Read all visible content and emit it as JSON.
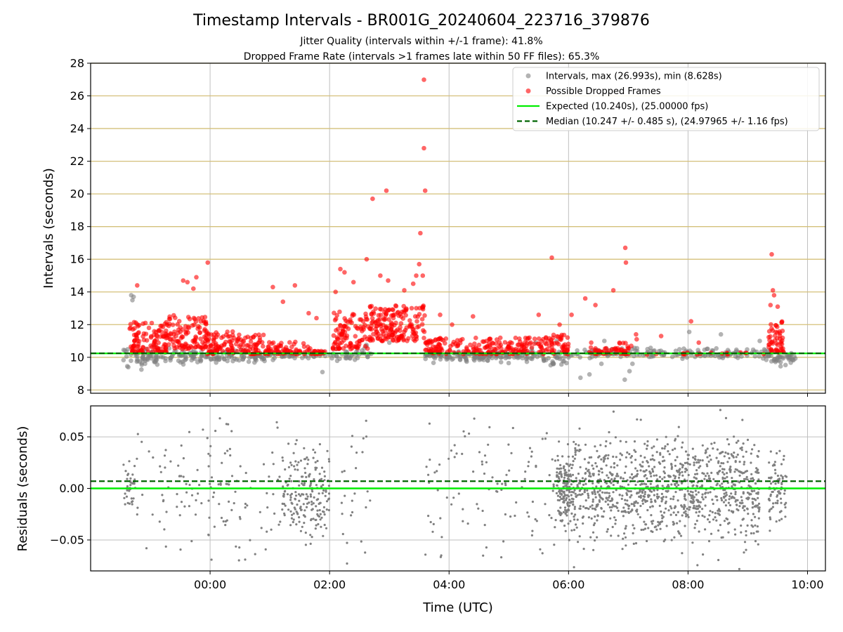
{
  "chart_data": {
    "type": "scatter",
    "title": "Timestamp Intervals - BR001G_20240604_223716_379876",
    "subtitles": [
      "Jitter Quality (intervals within +/-1 frame): 41.8%",
      "Dropped Frame Rate (intervals >1 frames late within 50 FF files): 65.3%"
    ],
    "xlabel": "Time (UTC)",
    "x_tick_labels": [
      "00:00",
      "02:00",
      "04:00",
      "06:00",
      "08:00",
      "10:00"
    ],
    "x_tick_hours": [
      24,
      26,
      28,
      30,
      32,
      34
    ],
    "xlim_hours": [
      22.0,
      34.3
    ],
    "colors": {
      "intervals": "#808080",
      "dropped": "#ff0000",
      "expected": "#00ee00",
      "median": "#006400",
      "grid": "#bfbfbf",
      "frame_lines": "#d4c07a"
    },
    "top": {
      "ylabel": "Intervals (seconds)",
      "ylim": [
        7.8,
        28
      ],
      "y_ticks": [
        8,
        10,
        12,
        14,
        16,
        18,
        20,
        22,
        24,
        26,
        28
      ],
      "frame_lines": [
        8,
        10,
        12,
        14,
        16,
        18,
        20,
        22,
        24,
        26,
        28
      ],
      "expected_value": 10.24,
      "median_value": 10.247,
      "legend": {
        "placement": "top-right",
        "entries": [
          {
            "label": "Intervals, max (26.993s), min (8.628s)",
            "kind": "marker",
            "color": "#808080"
          },
          {
            "label": "Possible Dropped Frames",
            "kind": "marker",
            "color": "#ff0000"
          },
          {
            "label": "Expected (10.240s), (25.00000 fps)",
            "kind": "line",
            "color": "#00ee00"
          },
          {
            "label": "Median (10.247 +/- 0.485 s), (24.97965 +/- 1.16 fps)",
            "kind": "dashed",
            "color": "#006400"
          }
        ]
      },
      "gray_clusters": [
        {
          "x0": 22.55,
          "x1": 23.9,
          "ymin": 9.3,
          "ymax": 10.8,
          "n": 110
        },
        {
          "x0": 23.9,
          "x1": 25.1,
          "ymin": 9.5,
          "ymax": 10.6,
          "n": 90
        },
        {
          "x0": 25.1,
          "x1": 26.0,
          "ymin": 9.8,
          "ymax": 10.5,
          "n": 40
        },
        {
          "x0": 26.0,
          "x1": 26.7,
          "ymin": 9.6,
          "ymax": 10.8,
          "n": 40
        },
        {
          "x0": 27.6,
          "x1": 29.6,
          "ymin": 9.6,
          "ymax": 10.6,
          "n": 170
        },
        {
          "x0": 29.6,
          "x1": 30.0,
          "ymin": 9.2,
          "ymax": 10.8,
          "n": 25
        },
        {
          "x0": 30.0,
          "x1": 33.4,
          "ymin": 9.8,
          "ymax": 10.7,
          "n": 170
        },
        {
          "x0": 33.3,
          "x1": 33.8,
          "ymin": 9.4,
          "ymax": 10.6,
          "n": 40
        }
      ],
      "gray_points": [
        {
          "x": 22.68,
          "y": 13.8
        },
        {
          "x": 22.7,
          "y": 13.5
        },
        {
          "x": 22.72,
          "y": 13.7
        },
        {
          "x": 22.63,
          "y": 9.4
        },
        {
          "x": 22.85,
          "y": 9.25
        },
        {
          "x": 25.88,
          "y": 9.1
        },
        {
          "x": 27.0,
          "y": 10.9
        },
        {
          "x": 29.45,
          "y": 10.9
        },
        {
          "x": 29.8,
          "y": 11.0
        },
        {
          "x": 30.2,
          "y": 8.75
        },
        {
          "x": 30.35,
          "y": 8.95
        },
        {
          "x": 30.6,
          "y": 11.0
        },
        {
          "x": 30.55,
          "y": 9.6
        },
        {
          "x": 31.07,
          "y": 9.6
        },
        {
          "x": 30.94,
          "y": 8.63
        },
        {
          "x": 31.02,
          "y": 9.15
        },
        {
          "x": 32.02,
          "y": 11.55
        },
        {
          "x": 32.55,
          "y": 11.4
        },
        {
          "x": 33.2,
          "y": 11.0
        },
        {
          "x": 33.55,
          "y": 9.45
        },
        {
          "x": 33.55,
          "y": 9.7
        }
      ],
      "red_clusters": [
        {
          "x0": 22.65,
          "x1": 23.3,
          "ymin": 10.3,
          "ymax": 12.2,
          "n": 120
        },
        {
          "x0": 23.3,
          "x1": 23.95,
          "ymin": 10.5,
          "ymax": 12.6,
          "n": 110
        },
        {
          "x0": 23.95,
          "x1": 24.4,
          "ymin": 10.2,
          "ymax": 11.6,
          "n": 70
        },
        {
          "x0": 24.4,
          "x1": 24.9,
          "ymin": 10.2,
          "ymax": 11.4,
          "n": 60
        },
        {
          "x0": 24.9,
          "x1": 25.7,
          "ymin": 10.2,
          "ymax": 11.0,
          "n": 70
        },
        {
          "x0": 25.7,
          "x1": 25.95,
          "ymin": 10.2,
          "ymax": 10.4,
          "n": 20
        },
        {
          "x0": 26.05,
          "x1": 26.65,
          "ymin": 10.5,
          "ymax": 12.8,
          "n": 100
        },
        {
          "x0": 26.65,
          "x1": 27.6,
          "ymin": 11.0,
          "ymax": 13.2,
          "n": 180
        },
        {
          "x0": 27.6,
          "x1": 27.9,
          "ymin": 10.2,
          "ymax": 11.2,
          "n": 50
        },
        {
          "x0": 27.9,
          "x1": 29.6,
          "ymin": 10.2,
          "ymax": 11.2,
          "n": 150
        },
        {
          "x0": 29.6,
          "x1": 30.0,
          "ymin": 10.2,
          "ymax": 11.4,
          "n": 50
        },
        {
          "x0": 30.35,
          "x1": 30.85,
          "ymin": 10.2,
          "ymax": 10.6,
          "n": 30
        },
        {
          "x0": 30.85,
          "x1": 31.05,
          "ymin": 10.2,
          "ymax": 10.9,
          "n": 20
        },
        {
          "x0": 33.35,
          "x1": 33.6,
          "ymin": 10.3,
          "ymax": 12.2,
          "n": 55
        }
      ],
      "red_points": [
        {
          "x": 22.78,
          "y": 14.4
        },
        {
          "x": 23.55,
          "y": 14.7
        },
        {
          "x": 23.62,
          "y": 14.6
        },
        {
          "x": 23.77,
          "y": 14.9
        },
        {
          "x": 23.72,
          "y": 14.2
        },
        {
          "x": 23.96,
          "y": 15.8
        },
        {
          "x": 25.05,
          "y": 14.3
        },
        {
          "x": 25.42,
          "y": 14.4
        },
        {
          "x": 25.22,
          "y": 13.4
        },
        {
          "x": 25.65,
          "y": 12.7
        },
        {
          "x": 25.78,
          "y": 12.4
        },
        {
          "x": 26.18,
          "y": 15.4
        },
        {
          "x": 26.25,
          "y": 15.2
        },
        {
          "x": 26.4,
          "y": 14.6
        },
        {
          "x": 26.1,
          "y": 14.0
        },
        {
          "x": 26.62,
          "y": 16.0
        },
        {
          "x": 26.72,
          "y": 19.7
        },
        {
          "x": 26.95,
          "y": 20.2
        },
        {
          "x": 26.85,
          "y": 15.0
        },
        {
          "x": 26.98,
          "y": 14.7
        },
        {
          "x": 27.25,
          "y": 14.1
        },
        {
          "x": 27.4,
          "y": 14.5
        },
        {
          "x": 27.45,
          "y": 15.0
        },
        {
          "x": 27.5,
          "y": 15.7
        },
        {
          "x": 27.52,
          "y": 17.6
        },
        {
          "x": 27.58,
          "y": 26.99
        },
        {
          "x": 27.58,
          "y": 22.8
        },
        {
          "x": 27.6,
          "y": 20.2
        },
        {
          "x": 27.56,
          "y": 15.0
        },
        {
          "x": 27.85,
          "y": 12.6
        },
        {
          "x": 28.05,
          "y": 12.0
        },
        {
          "x": 28.4,
          "y": 12.5
        },
        {
          "x": 29.72,
          "y": 16.1
        },
        {
          "x": 29.5,
          "y": 12.6
        },
        {
          "x": 29.85,
          "y": 12.0
        },
        {
          "x": 30.05,
          "y": 12.6
        },
        {
          "x": 30.28,
          "y": 13.6
        },
        {
          "x": 30.45,
          "y": 13.2
        },
        {
          "x": 30.38,
          "y": 10.9
        },
        {
          "x": 30.95,
          "y": 16.7
        },
        {
          "x": 30.96,
          "y": 15.8
        },
        {
          "x": 30.75,
          "y": 14.1
        },
        {
          "x": 31.13,
          "y": 11.4
        },
        {
          "x": 31.14,
          "y": 11.1
        },
        {
          "x": 31.05,
          "y": 10.7
        },
        {
          "x": 31.55,
          "y": 11.3
        },
        {
          "x": 32.05,
          "y": 12.2
        },
        {
          "x": 32.18,
          "y": 10.9
        },
        {
          "x": 33.4,
          "y": 16.3
        },
        {
          "x": 33.42,
          "y": 14.1
        },
        {
          "x": 33.44,
          "y": 13.8
        },
        {
          "x": 33.38,
          "y": 13.2
        },
        {
          "x": 33.5,
          "y": 13.1
        }
      ],
      "red_sparse_regions": [
        {
          "x0": 31.2,
          "x1": 33.3,
          "y": 10.24,
          "n": 18
        }
      ]
    },
    "bottom": {
      "ylabel": "Residuals (seconds)",
      "ylim": [
        -0.08,
        0.08
      ],
      "y_ticks": [
        -0.05,
        0.0,
        0.05
      ],
      "y_tick_labels": [
        "−0.05",
        "0.00",
        "0.05"
      ],
      "expected_value": 0.0,
      "median_value": 0.007,
      "clusters": [
        {
          "x0": 22.55,
          "x1": 22.75,
          "ymin": -0.03,
          "ymax": 0.03,
          "n": 40
        },
        {
          "x0": 22.75,
          "x1": 24.0,
          "ymin": -0.07,
          "ymax": 0.07,
          "n": 60
        },
        {
          "x0": 24.0,
          "x1": 25.2,
          "ymin": -0.08,
          "ymax": 0.08,
          "n": 70
        },
        {
          "x0": 25.2,
          "x1": 26.0,
          "ymin": -0.06,
          "ymax": 0.05,
          "n": 200
        },
        {
          "x0": 26.2,
          "x1": 26.7,
          "ymin": -0.075,
          "ymax": 0.08,
          "n": 25
        },
        {
          "x0": 27.6,
          "x1": 28.0,
          "ymin": -0.08,
          "ymax": 0.08,
          "n": 20
        },
        {
          "x0": 28.0,
          "x1": 29.6,
          "ymin": -0.08,
          "ymax": 0.08,
          "n": 70
        },
        {
          "x0": 29.6,
          "x1": 30.0,
          "ymin": -0.06,
          "ymax": 0.06,
          "n": 25
        },
        {
          "x0": 29.8,
          "x1": 30.05,
          "ymin": -0.04,
          "ymax": 0.04,
          "n": 140
        },
        {
          "x0": 30.05,
          "x1": 33.2,
          "ymin": -0.055,
          "ymax": 0.055,
          "n": 950
        },
        {
          "x0": 30.0,
          "x1": 33.2,
          "ymin": -0.08,
          "ymax": 0.08,
          "n": 130
        },
        {
          "x0": 33.35,
          "x1": 33.65,
          "ymin": -0.045,
          "ymax": 0.04,
          "n": 80
        }
      ]
    }
  }
}
